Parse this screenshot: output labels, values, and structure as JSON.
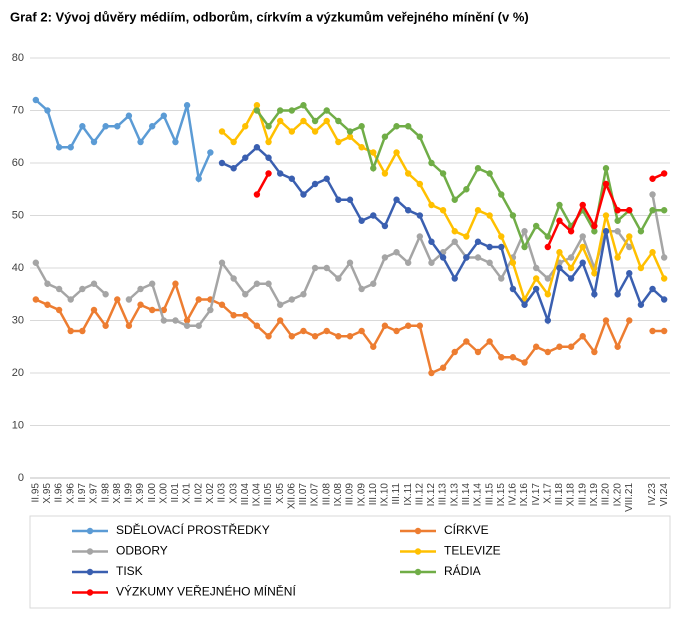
{
  "chart_data": {
    "type": "line",
    "title": "Graf 2: Vývoj důvěry médiím, odborům, církvím a výzkumům veřejného mínění (v %)",
    "categories": [
      "II.95",
      "X.95",
      "II.96",
      "X.96",
      "II.97",
      "X.97",
      "II.98",
      "X.98",
      "II.99",
      "X.99",
      "II.00",
      "X.00",
      "II.01",
      "X.01",
      "II.02",
      "X.02",
      "II.03",
      "X.03",
      "III.04",
      "IX.04",
      "III.05",
      "X.05",
      "XII.06",
      "III.07",
      "IX.07",
      "III.08",
      "IX.08",
      "III.09",
      "IX.09",
      "III.10",
      "IX.10",
      "III.11",
      "IX.11",
      "III.12",
      "IX.12",
      "III.13",
      "IX.13",
      "III.14",
      "IX.14",
      "III.15",
      "IX.15",
      "IV.16",
      "IX.16",
      "IV.17",
      "X.17",
      "III.18",
      "XI.18",
      "III.19",
      "IX.19",
      "III.20",
      "IX.20",
      "VIII.21",
      null,
      "IV.23",
      "VI.24"
    ],
    "series": [
      {
        "name": "SDĚLOVACÍ PROSTŘEDKY",
        "color": "#5b9bd5",
        "values": [
          72,
          70,
          63,
          63,
          67,
          64,
          67,
          67,
          69,
          64,
          67,
          69,
          64,
          71,
          57,
          62,
          null,
          null,
          null,
          null,
          null,
          null,
          null,
          null,
          null,
          null,
          null,
          null,
          null,
          null,
          null,
          null,
          null,
          null,
          null,
          null,
          null,
          null,
          null,
          null,
          null,
          null,
          null,
          null,
          null,
          null,
          null,
          null,
          null,
          null,
          null,
          null,
          null,
          null,
          null
        ]
      },
      {
        "name": "CÍRKVE",
        "color": "#ed7d31",
        "values": [
          34,
          33,
          32,
          28,
          28,
          32,
          29,
          34,
          29,
          33,
          32,
          32,
          37,
          30,
          34,
          34,
          33,
          31,
          31,
          29,
          27,
          30,
          27,
          28,
          27,
          28,
          27,
          27,
          28,
          25,
          29,
          28,
          29,
          29,
          20,
          21,
          24,
          26,
          24,
          26,
          23,
          23,
          22,
          25,
          24,
          25,
          25,
          27,
          24,
          30,
          25,
          30,
          null,
          28,
          28
        ]
      },
      {
        "name": "ODBORY",
        "color": "#a5a5a5",
        "values": [
          41,
          37,
          36,
          34,
          36,
          37,
          35,
          null,
          34,
          36,
          37,
          30,
          30,
          29,
          29,
          32,
          41,
          38,
          35,
          37,
          37,
          33,
          34,
          35,
          40,
          40,
          38,
          41,
          36,
          37,
          42,
          43,
          41,
          46,
          41,
          43,
          45,
          42,
          42,
          41,
          38,
          42,
          47,
          40,
          38,
          41,
          42,
          46,
          40,
          47,
          47,
          44,
          null,
          54,
          42
        ]
      },
      {
        "name": "TELEVIZE",
        "color": "#ffc000",
        "values": [
          null,
          null,
          null,
          null,
          null,
          null,
          null,
          null,
          null,
          null,
          null,
          null,
          null,
          null,
          null,
          null,
          66,
          64,
          67,
          71,
          64,
          68,
          66,
          68,
          66,
          68,
          64,
          65,
          63,
          62,
          58,
          62,
          58,
          56,
          52,
          51,
          47,
          46,
          51,
          50,
          46,
          41,
          34,
          38,
          35,
          43,
          40,
          44,
          39,
          50,
          42,
          46,
          40,
          43,
          38
        ]
      },
      {
        "name": "TISK",
        "color": "#3a5fb0",
        "values": [
          null,
          null,
          null,
          null,
          null,
          null,
          null,
          null,
          null,
          null,
          null,
          null,
          null,
          null,
          null,
          null,
          60,
          59,
          61,
          63,
          61,
          58,
          57,
          54,
          56,
          57,
          53,
          53,
          49,
          50,
          48,
          53,
          51,
          50,
          45,
          42,
          38,
          42,
          45,
          44,
          44,
          36,
          33,
          36,
          30,
          40,
          38,
          41,
          35,
          47,
          35,
          39,
          33,
          36,
          34
        ]
      },
      {
        "name": "RÁDIA",
        "color": "#70ad47",
        "values": [
          null,
          null,
          null,
          null,
          null,
          null,
          null,
          null,
          null,
          null,
          null,
          null,
          null,
          null,
          null,
          null,
          null,
          null,
          null,
          70,
          67,
          70,
          70,
          71,
          68,
          70,
          68,
          66,
          67,
          59,
          65,
          67,
          67,
          65,
          60,
          58,
          53,
          55,
          59,
          58,
          54,
          50,
          44,
          48,
          46,
          52,
          48,
          51,
          47,
          59,
          49,
          51,
          47,
          51,
          51
        ]
      },
      {
        "name": "VÝZKUMY VEŘEJNÉHO MÍNĚNÍ",
        "color": "#ff0000",
        "values": [
          null,
          null,
          null,
          null,
          null,
          null,
          null,
          null,
          null,
          null,
          null,
          null,
          null,
          null,
          null,
          null,
          null,
          null,
          null,
          54,
          58,
          null,
          null,
          null,
          null,
          null,
          null,
          null,
          null,
          null,
          null,
          null,
          null,
          null,
          null,
          null,
          null,
          null,
          null,
          null,
          null,
          null,
          null,
          null,
          44,
          49,
          47,
          52,
          48,
          56,
          51,
          51,
          null,
          57,
          58
        ]
      }
    ],
    "ylim": [
      0,
      80
    ],
    "yticks": [
      0,
      10,
      20,
      30,
      40,
      50,
      60,
      70,
      80
    ],
    "grid": true
  }
}
